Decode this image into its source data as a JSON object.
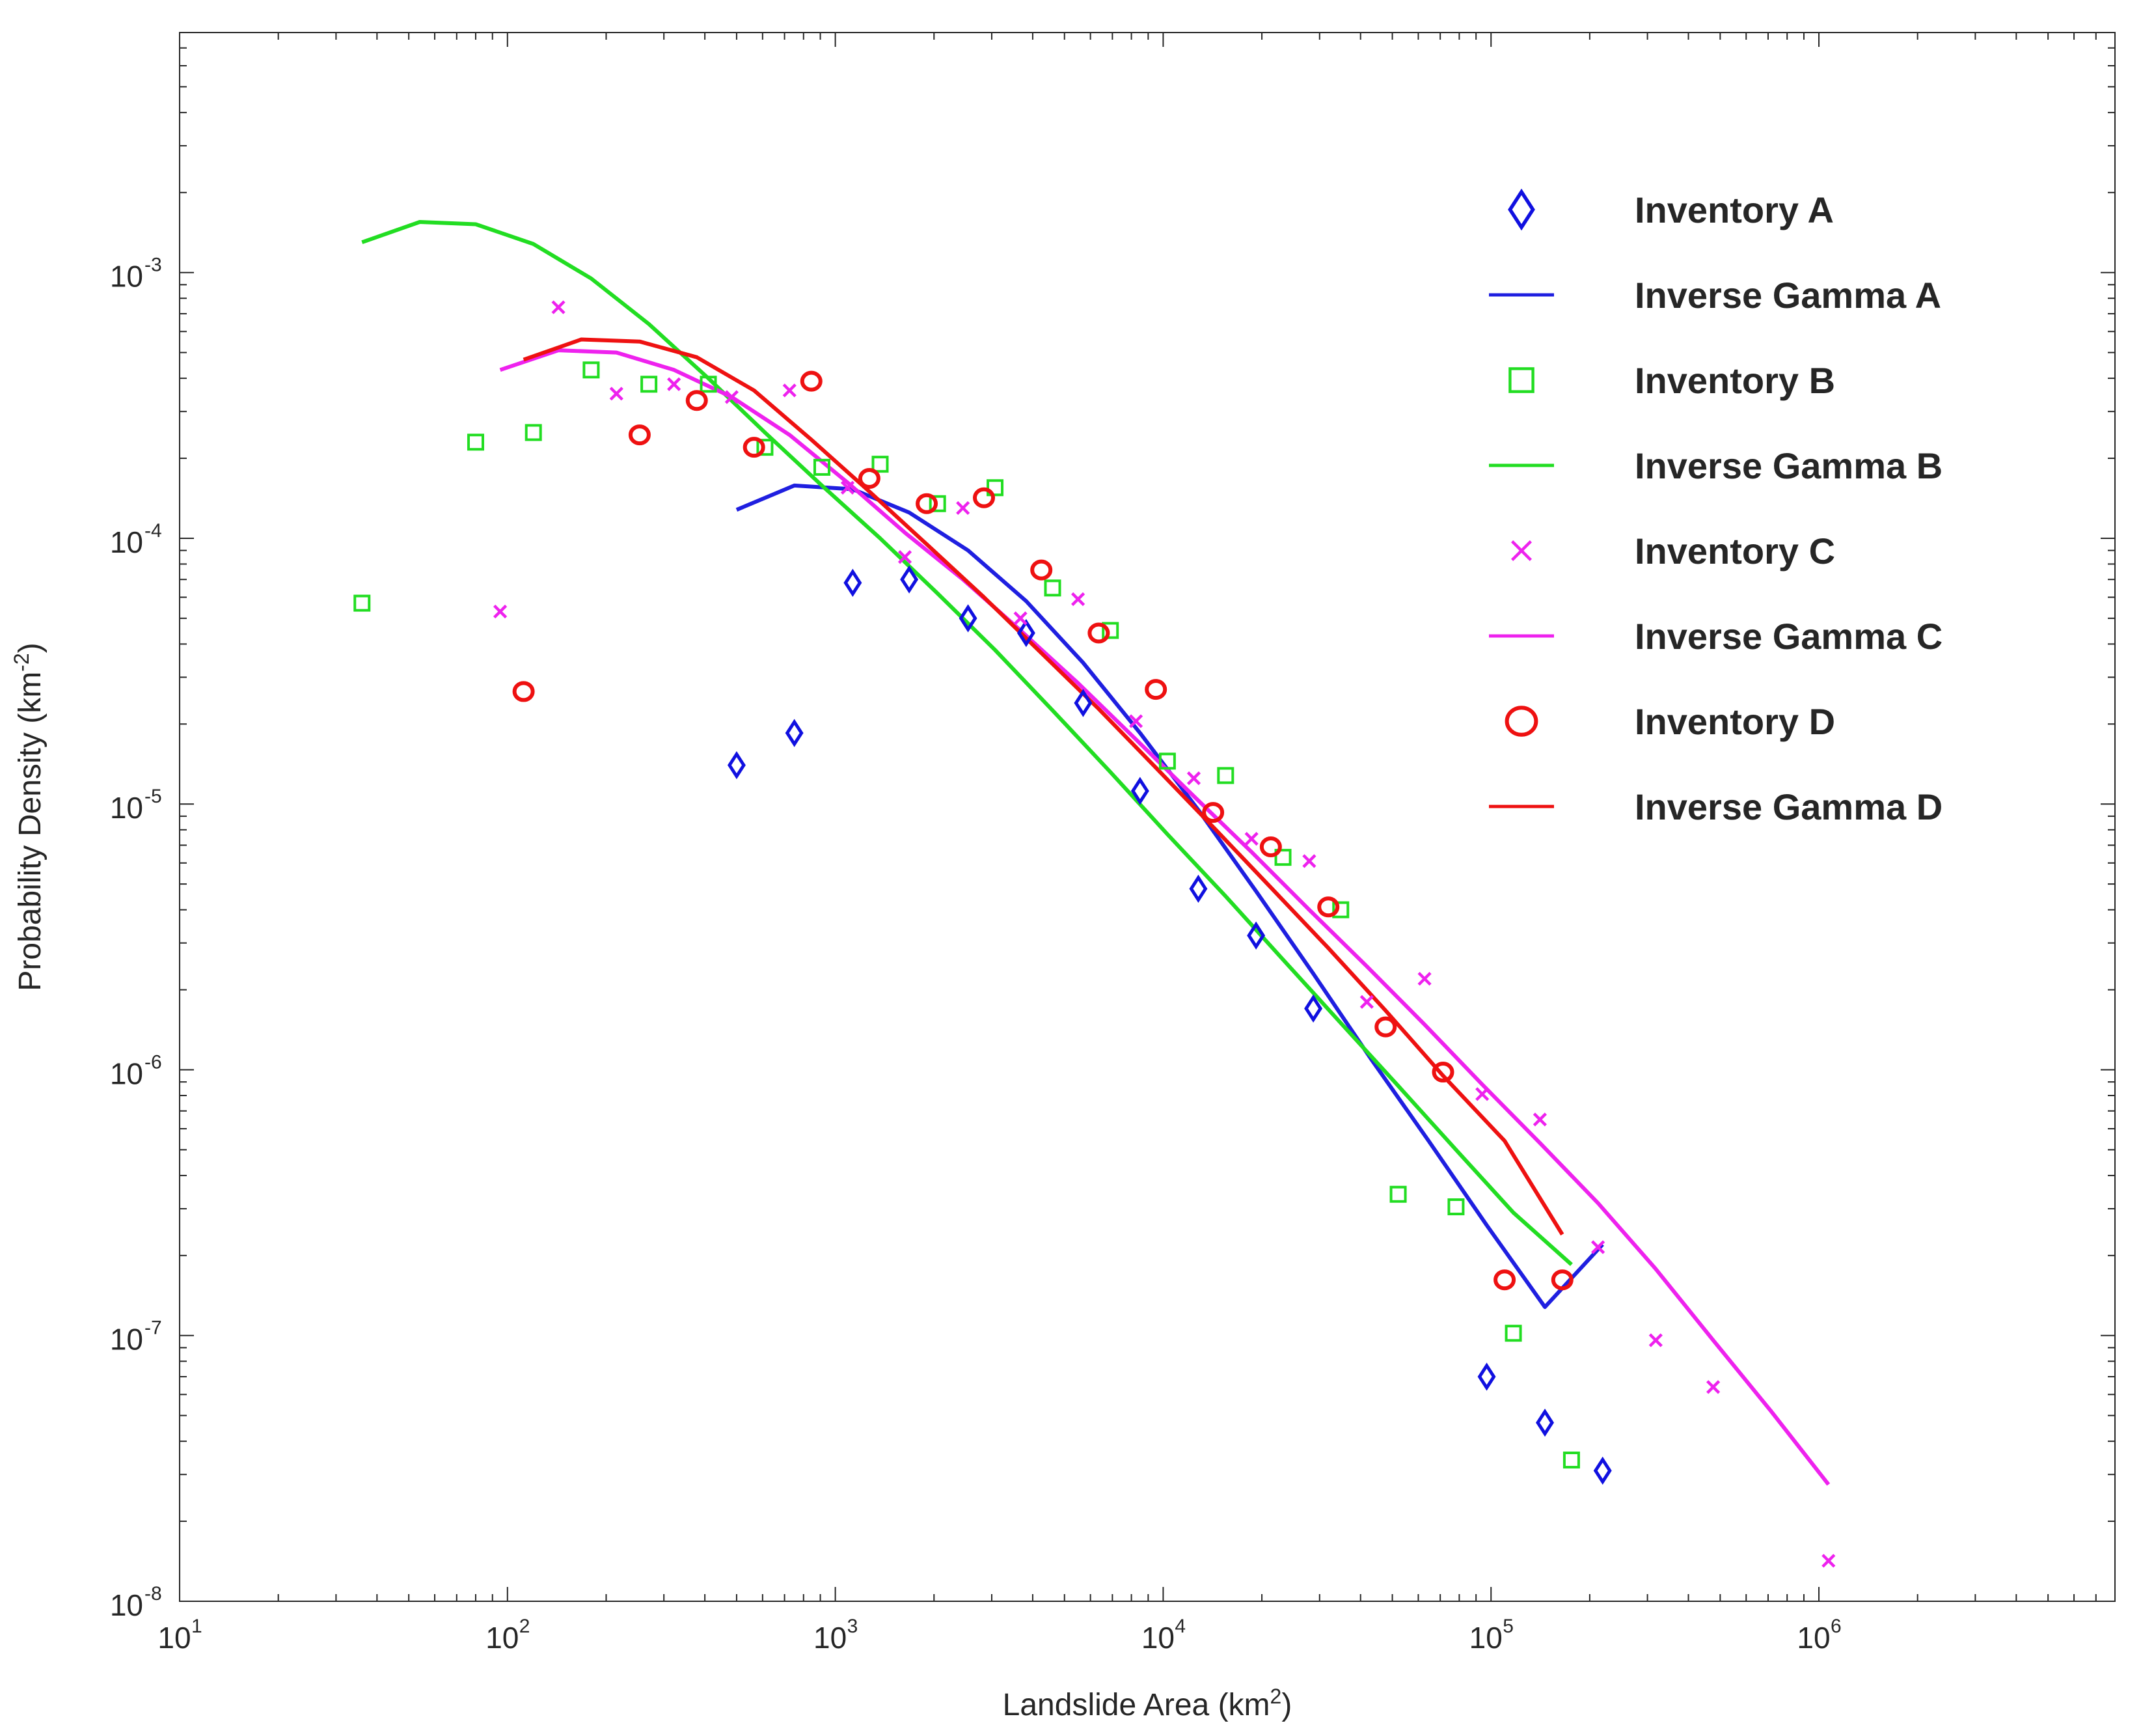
{
  "chart_data": {
    "type": "scatter",
    "x_scale": "log",
    "y_scale": "log",
    "xlim": [
      10,
      8000000
    ],
    "ylim": [
      1e-08,
      0.008
    ],
    "grid": false,
    "legend_position": "top-right",
    "xlabel": {
      "text": "Landslide Area (km",
      "sup": "2",
      "close": ")"
    },
    "ylabel": {
      "text": "Probability Density (km",
      "sup": "-2",
      "close": ")"
    },
    "x_ticks": [
      {
        "value": 10,
        "base": "10",
        "exp": "1"
      },
      {
        "value": 100,
        "base": "10",
        "exp": "2"
      },
      {
        "value": 1000,
        "base": "10",
        "exp": "3"
      },
      {
        "value": 10000,
        "base": "10",
        "exp": "4"
      },
      {
        "value": 100000,
        "base": "10",
        "exp": "5"
      },
      {
        "value": 1000000,
        "base": "10",
        "exp": "6"
      }
    ],
    "y_ticks": [
      {
        "value": 1e-08,
        "base": "10",
        "exp": "-8"
      },
      {
        "value": 1e-07,
        "base": "10",
        "exp": "-7"
      },
      {
        "value": 1e-06,
        "base": "10",
        "exp": "-6"
      },
      {
        "value": 1e-05,
        "base": "10",
        "exp": "-5"
      },
      {
        "value": 0.0001,
        "base": "10",
        "exp": "-4"
      },
      {
        "value": 0.001,
        "base": "10",
        "exp": "-3"
      }
    ],
    "series": [
      {
        "name": "Inventory A",
        "kind": "points",
        "marker": "diamond",
        "color": "#1010e0",
        "x": [
          500,
          750,
          1130,
          1680,
          2540,
          3820,
          5700,
          8500,
          12800,
          19200,
          28700,
          97000,
          146000,
          219000
        ],
        "y": [
          1.4e-05,
          1.85e-05,
          6.8e-05,
          7e-05,
          5e-05,
          4.4e-05,
          2.4e-05,
          1.12e-05,
          4.8e-06,
          3.2e-06,
          1.7e-06,
          7e-08,
          4.7e-08,
          3.1e-08
        ]
      },
      {
        "name": "Inverse Gamma A",
        "kind": "line",
        "color": "#1f1fe0",
        "x": [
          500,
          750,
          1130,
          1680,
          2540,
          3820,
          5700,
          8500,
          12800,
          19200,
          28700,
          43000,
          64500,
          97000,
          146000,
          219000
        ],
        "y": [
          0.000128,
          0.000158,
          0.000153,
          0.000125,
          9e-05,
          5.8e-05,
          3.4e-05,
          1.85e-05,
          9.5e-06,
          4.7e-06,
          2.3e-06,
          1.1e-06,
          5.4e-07,
          2.6e-07,
          1.28e-07,
          2.2e-07
        ]
      },
      {
        "name": "Inventory B",
        "kind": "points",
        "marker": "square",
        "color": "#22dd22",
        "x": [
          36,
          80,
          120,
          180,
          270,
          410,
          610,
          910,
          1370,
          2050,
          3070,
          4600,
          6900,
          10300,
          15500,
          23200,
          34800,
          52100,
          78200,
          117000,
          176000
        ],
        "y": [
          5.7e-05,
          0.00023,
          0.00025,
          0.00043,
          0.00038,
          0.00038,
          0.00022,
          0.000185,
          0.00019,
          0.000135,
          0.000155,
          6.5e-05,
          4.5e-05,
          1.45e-05,
          1.28e-05,
          6.3e-06,
          4e-06,
          3.4e-07,
          3.05e-07,
          1.02e-07,
          3.4e-08
        ]
      },
      {
        "name": "Inverse Gamma B",
        "kind": "line",
        "color": "#22dd22",
        "x": [
          36,
          54,
          80,
          120,
          180,
          270,
          410,
          610,
          910,
          1370,
          2050,
          3070,
          4600,
          6900,
          10300,
          15500,
          23200,
          34800,
          52100,
          78200,
          117000,
          176000
        ],
        "y": [
          0.0013,
          0.00155,
          0.00152,
          0.00128,
          0.00095,
          0.00064,
          0.0004,
          0.00025,
          0.000158,
          0.0001,
          6.2e-05,
          3.8e-05,
          2.25e-05,
          1.32e-05,
          7.7e-06,
          4.5e-06,
          2.6e-06,
          1.5e-06,
          8.7e-07,
          5e-07,
          2.9e-07,
          1.85e-07
        ]
      },
      {
        "name": "Inventory C",
        "kind": "points",
        "marker": "x",
        "color": "#ee22ee",
        "x": [
          95,
          143,
          215,
          322,
          483,
          725,
          1090,
          1630,
          2450,
          3670,
          5500,
          8260,
          12400,
          18600,
          27900,
          41800,
          62700,
          94000,
          141000,
          212000,
          318000,
          476000,
          1070000
        ],
        "y": [
          5.3e-05,
          0.00074,
          0.00035,
          0.00038,
          0.00034,
          0.00036,
          0.000155,
          8.5e-05,
          0.00013,
          5e-05,
          5.9e-05,
          2.05e-05,
          1.25e-05,
          7.4e-06,
          6.1e-06,
          1.8e-06,
          2.2e-06,
          8.1e-07,
          6.5e-07,
          2.15e-07,
          9.6e-08,
          6.4e-08,
          1.42e-08
        ]
      },
      {
        "name": "Inverse Gamma C",
        "kind": "line",
        "color": "#ee22ee",
        "x": [
          95,
          143,
          215,
          322,
          483,
          725,
          1090,
          1630,
          2450,
          3670,
          5500,
          8260,
          12400,
          18600,
          27900,
          41800,
          62700,
          94000,
          141000,
          212000,
          318000,
          476000,
          714000,
          1070000
        ],
        "y": [
          0.00043,
          0.00051,
          0.0005,
          0.00043,
          0.00034,
          0.000245,
          0.000162,
          0.000105,
          7e-05,
          4.5e-05,
          2.85e-05,
          1.75e-05,
          1.07e-05,
          6.6e-06,
          4e-06,
          2.45e-06,
          1.48e-06,
          8.8e-07,
          5.3e-07,
          3.15e-07,
          1.78e-07,
          9.6e-08,
          5.2e-08,
          2.75e-08
        ]
      },
      {
        "name": "Inventory D",
        "kind": "points",
        "marker": "circle",
        "color": "#ee1111",
        "x": [
          112,
          253,
          378,
          565,
          845,
          1270,
          1900,
          2840,
          4250,
          6360,
          9500,
          14200,
          21300,
          31900,
          47700,
          71400,
          110000,
          165000
        ],
        "y": [
          2.65e-05,
          0.000245,
          0.00033,
          0.00022,
          0.00039,
          0.000168,
          0.000135,
          0.000142,
          7.6e-05,
          4.4e-05,
          2.7e-05,
          9.3e-06,
          6.9e-06,
          4.1e-06,
          1.45e-06,
          9.8e-07,
          1.62e-07,
          1.62e-07
        ]
      },
      {
        "name": "Inverse Gamma D",
        "kind": "line",
        "color": "#ee1111",
        "x": [
          112,
          168,
          253,
          378,
          565,
          845,
          1270,
          1900,
          2840,
          4250,
          6360,
          9500,
          14200,
          21300,
          31900,
          47700,
          71400,
          110000,
          165000
        ],
        "y": [
          0.00047,
          0.00056,
          0.00055,
          0.00048,
          0.00036,
          0.000235,
          0.00015,
          9.5e-05,
          6e-05,
          3.7e-05,
          2.28e-05,
          1.37e-05,
          8.2e-06,
          4.85e-06,
          2.87e-06,
          1.67e-06,
          9.5e-07,
          5.4e-07,
          2.4e-07
        ]
      }
    ]
  }
}
